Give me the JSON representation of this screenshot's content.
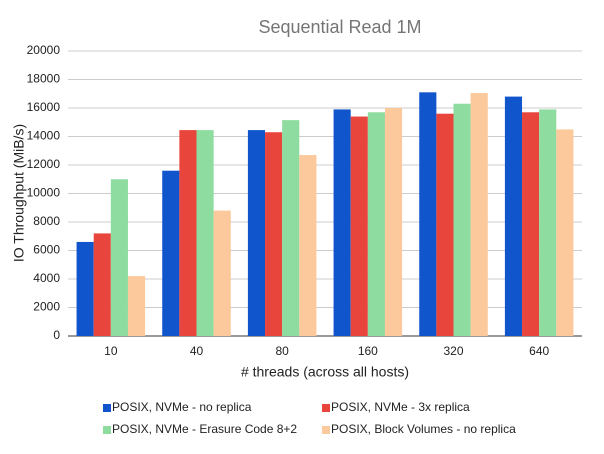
{
  "chart_data": {
    "type": "bar",
    "title": "Sequential Read 1M",
    "x_label": "# threads (across all hosts)",
    "y_label": "IO Throughput (MiB/s)",
    "categories": [
      "10",
      "40",
      "80",
      "160",
      "320",
      "640"
    ],
    "series": [
      {
        "name": "POSIX, NVMe - no replica",
        "color": "#1155cc",
        "values": [
          6600,
          11600,
          14450,
          15900,
          17100,
          16800
        ]
      },
      {
        "name": "POSIX, NVMe - 3x replica",
        "color": "#e8453c",
        "values": [
          7200,
          14450,
          14300,
          15400,
          15600,
          15700
        ]
      },
      {
        "name": "POSIX, NVMe - Erasure Code 8+2",
        "color": "#8fdca0",
        "values": [
          11000,
          14450,
          15150,
          15700,
          16300,
          15900
        ]
      },
      {
        "name": "POSIX, Block Volumes  - no replica",
        "color": "#fcc99c",
        "values": [
          4200,
          8800,
          12700,
          16000,
          17050,
          14500
        ]
      }
    ],
    "ylim": [
      0,
      20000
    ],
    "yticks": [
      0,
      2000,
      4000,
      6000,
      8000,
      10000,
      12000,
      14000,
      16000,
      18000,
      20000
    ],
    "grid": true,
    "legend": "bottom"
  }
}
